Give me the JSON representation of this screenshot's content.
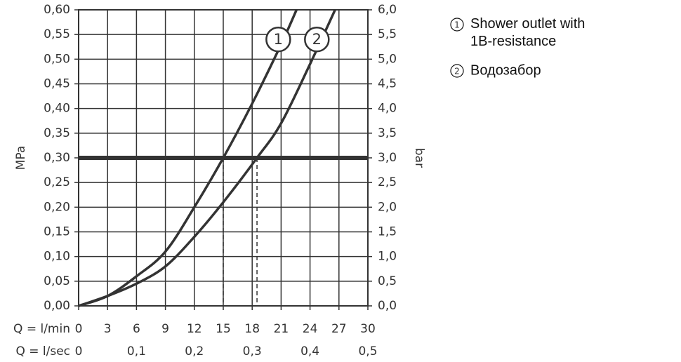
{
  "chart_data": {
    "type": "line",
    "xlabel": "Q = l/min",
    "x2label": "Q = l/sec",
    "ylabel": "MPa",
    "y2label": "bar",
    "xlim": [
      0,
      30
    ],
    "xticks": [
      0,
      3,
      6,
      9,
      12,
      15,
      18,
      21,
      24,
      27,
      30
    ],
    "x2lim": [
      0,
      0.5
    ],
    "x2ticks": [
      0,
      {
        "value": 0.1,
        "label": "0,1"
      },
      {
        "value": 0.2,
        "label": "0,2"
      },
      {
        "value": 0.3,
        "label": "0,3"
      },
      {
        "value": 0.4,
        "label": "0,4"
      },
      {
        "value": 0.5,
        "label": "0,5"
      }
    ],
    "ylim": [
      0,
      0.6
    ],
    "yticks": [
      {
        "value": 0,
        "label": "0,00"
      },
      {
        "value": 0.05,
        "label": "0,05"
      },
      {
        "value": 0.1,
        "label": "0,10"
      },
      {
        "value": 0.15,
        "label": "0,15"
      },
      {
        "value": 0.2,
        "label": "0,20"
      },
      {
        "value": 0.25,
        "label": "0,25"
      },
      {
        "value": 0.3,
        "label": "0,30"
      },
      {
        "value": 0.35,
        "label": "0,35"
      },
      {
        "value": 0.4,
        "label": "0,40"
      },
      {
        "value": 0.45,
        "label": "0,45"
      },
      {
        "value": 0.5,
        "label": "0,50"
      },
      {
        "value": 0.55,
        "label": "0,55"
      },
      {
        "value": 0.6,
        "label": "0,60"
      }
    ],
    "y2lim": [
      0,
      6
    ],
    "y2ticks": [
      {
        "value": 0,
        "label": "0,0"
      },
      {
        "value": 0.5,
        "label": "0,5"
      },
      {
        "value": 1,
        "label": "1,0"
      },
      {
        "value": 1.5,
        "label": "1,5"
      },
      {
        "value": 2,
        "label": "2,0"
      },
      {
        "value": 2.5,
        "label": "2,5"
      },
      {
        "value": 3,
        "label": "3,0"
      },
      {
        "value": 3.5,
        "label": "3,5"
      },
      {
        "value": 4,
        "label": "4,0"
      },
      {
        "value": 4.5,
        "label": "4,5"
      },
      {
        "value": 5,
        "label": "5,0"
      },
      {
        "value": 5.5,
        "label": "5,5"
      },
      {
        "value": 6,
        "label": "6,0"
      }
    ],
    "grid": true,
    "reference_line": 0.3,
    "drop_lines": [
      15,
      18.5
    ],
    "series": [
      {
        "name": "Shower outlet with 1B-resistance",
        "label": "1",
        "color": "#333333",
        "x": [
          0,
          3,
          6,
          9,
          12,
          15,
          18,
          21,
          22.6
        ],
        "values": [
          0,
          0.02,
          0.06,
          0.11,
          0.2,
          0.3,
          0.41,
          0.53,
          0.6
        ]
      },
      {
        "name": "Водозабор",
        "label": "2",
        "color": "#333333",
        "x": [
          0,
          3,
          6,
          9,
          12,
          15,
          18.5,
          21,
          24,
          26.6
        ],
        "values": [
          0,
          0.02,
          0.045,
          0.08,
          0.14,
          0.21,
          0.3,
          0.37,
          0.49,
          0.6
        ]
      }
    ]
  }
}
